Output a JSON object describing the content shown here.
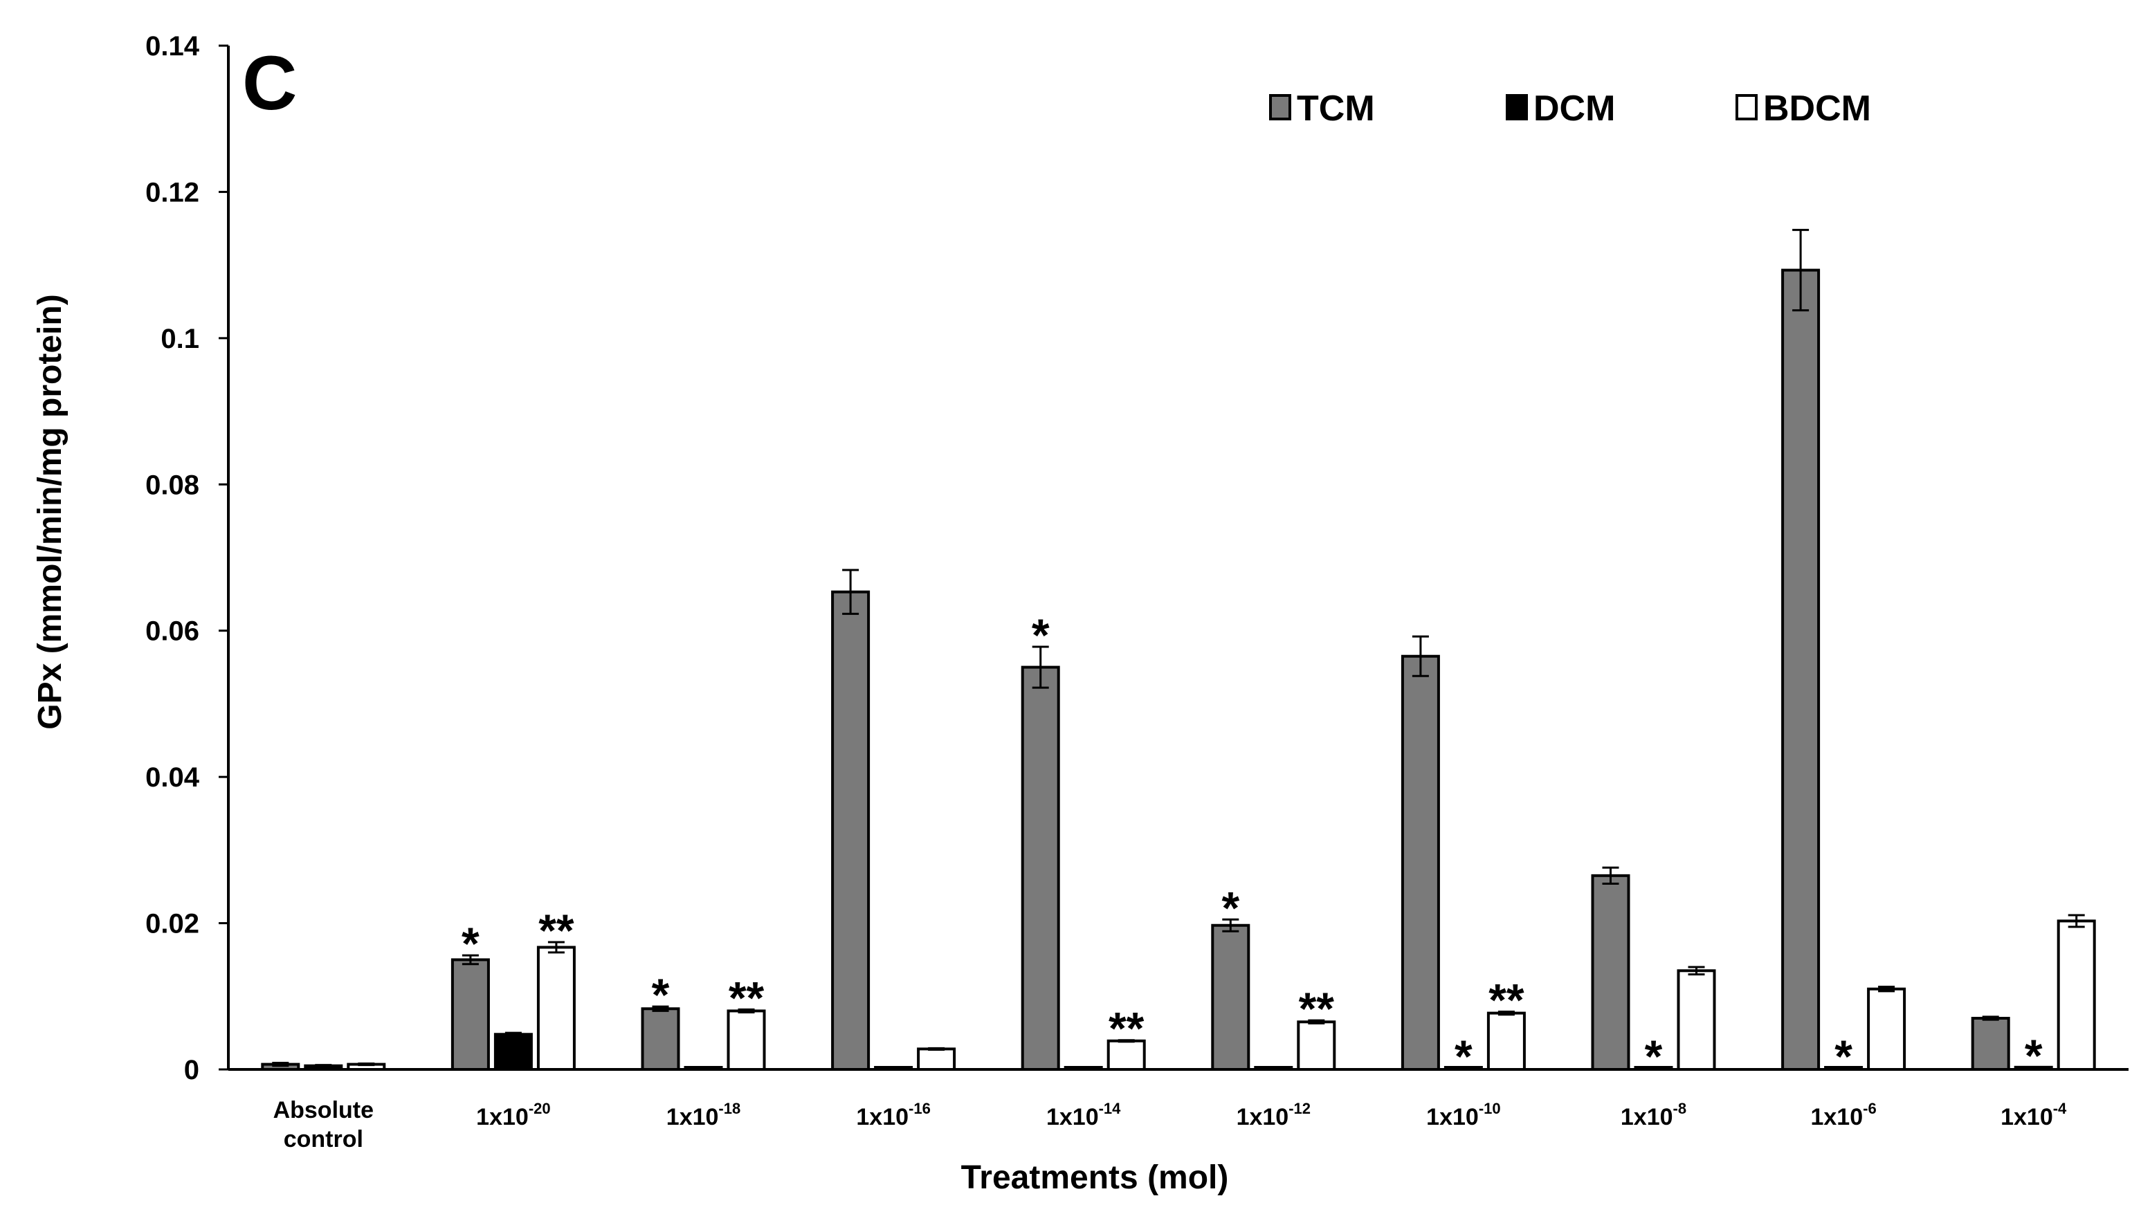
{
  "chart_data": {
    "type": "bar",
    "panel_label": "C",
    "xlabel": "Treatments (mol)",
    "ylabel": "GPx (mmol/min/mg protein)",
    "ylim": [
      0,
      0.14
    ],
    "yticks": [
      {
        "value": 0,
        "label": "0"
      },
      {
        "value": 0.02,
        "label": "0.02"
      },
      {
        "value": 0.04,
        "label": "0.04"
      },
      {
        "value": 0.06,
        "label": "0.06"
      },
      {
        "value": 0.08,
        "label": "0.08"
      },
      {
        "value": 0.1,
        "label": "0.1"
      },
      {
        "value": 0.12,
        "label": "0.12"
      },
      {
        "value": 0.14,
        "label": "0.14"
      }
    ],
    "categories": [
      {
        "id": "absolute-control",
        "lines": [
          "Absolute",
          "control"
        ]
      },
      {
        "id": "1e-20",
        "base": "1x10",
        "exp": "-20"
      },
      {
        "id": "1e-18",
        "base": "1x10",
        "exp": "-18"
      },
      {
        "id": "1e-16",
        "base": "1x10",
        "exp": "-16"
      },
      {
        "id": "1e-14",
        "base": "1x10",
        "exp": "-14"
      },
      {
        "id": "1e-12",
        "base": "1x10",
        "exp": "-12"
      },
      {
        "id": "1e-10",
        "base": "1x10",
        "exp": "-10"
      },
      {
        "id": "1e-8",
        "base": "1x10",
        "exp": "-8"
      },
      {
        "id": "1e-6",
        "base": "1x10",
        "exp": "-6"
      },
      {
        "id": "1e-4",
        "base": "1x10",
        "exp": "-4"
      }
    ],
    "series": [
      {
        "name": "TCM",
        "fill": "#7a7a7a",
        "values": [
          0.0007,
          0.015,
          0.0083,
          0.0653,
          0.055,
          0.0197,
          0.0565,
          0.0265,
          0.1093,
          0.007
        ],
        "errors": [
          0.0002,
          0.0006,
          0.0003,
          0.003,
          0.0028,
          0.0008,
          0.0027,
          0.0011,
          0.0055,
          0.0002
        ],
        "sig": [
          "",
          "*",
          "*",
          "",
          "*",
          "*",
          "",
          "",
          "",
          ""
        ]
      },
      {
        "name": "DCM",
        "fill": "#000000",
        "values": [
          0.0005,
          0.0048,
          0.0001,
          0.0001,
          0.0001,
          0.0001,
          0.0002,
          0.0002,
          0.0002,
          0.0003
        ],
        "errors": [
          0.0001,
          0.0002,
          0,
          0,
          0,
          0,
          0,
          0,
          0,
          0
        ],
        "sig": [
          "",
          "",
          "",
          "",
          "",
          "",
          "*",
          "*",
          "*",
          "*"
        ]
      },
      {
        "name": "BDCM",
        "fill": "#ffffff",
        "values": [
          0.0007,
          0.0167,
          0.008,
          0.0028,
          0.0039,
          0.0065,
          0.0077,
          0.0135,
          0.011,
          0.0203
        ],
        "errors": [
          0.0001,
          0.0007,
          0.0002,
          0.0001,
          0.0001,
          0.0002,
          0.0002,
          0.0005,
          0.0003,
          0.0008
        ],
        "sig": [
          "",
          "**",
          "**",
          "",
          "**",
          "**",
          "**",
          "",
          "",
          ""
        ]
      }
    ],
    "legend_position": "top-right"
  }
}
